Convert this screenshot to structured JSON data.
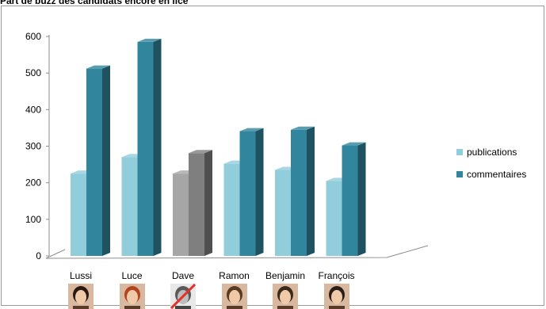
{
  "title": "Part de buzz des candidats encore en lice",
  "chart_data": {
    "type": "bar",
    "title": "Part de buzz des candidats encore en lice",
    "categories": [
      "Lussi",
      "Luce",
      "Dave",
      "Ramon",
      "Benjamin",
      "François"
    ],
    "series": [
      {
        "name": "publications",
        "values": [
          225,
          270,
          225,
          252,
          235,
          205
        ]
      },
      {
        "name": "commentaires",
        "values": [
          512,
          585,
          281,
          341,
          345,
          302
        ]
      }
    ],
    "ylim": [
      0,
      600
    ],
    "yticks": [
      "0",
      "100",
      "200",
      "300",
      "400",
      "500",
      "600"
    ],
    "xlabel": "",
    "ylabel": "",
    "grid": false,
    "legend_position": "right",
    "eliminated": [
      "Dave"
    ],
    "colors": {
      "publications": "#92cddc",
      "commentaires": "#31859c",
      "eliminated_publications": "#a6a6a6",
      "eliminated_commentaires": "#7f7f7f",
      "cross": "#e2302c"
    }
  },
  "legend": [
    {
      "label": "publications",
      "color": "#92cddc"
    },
    {
      "label": "commentaires",
      "color": "#31859c"
    }
  ]
}
